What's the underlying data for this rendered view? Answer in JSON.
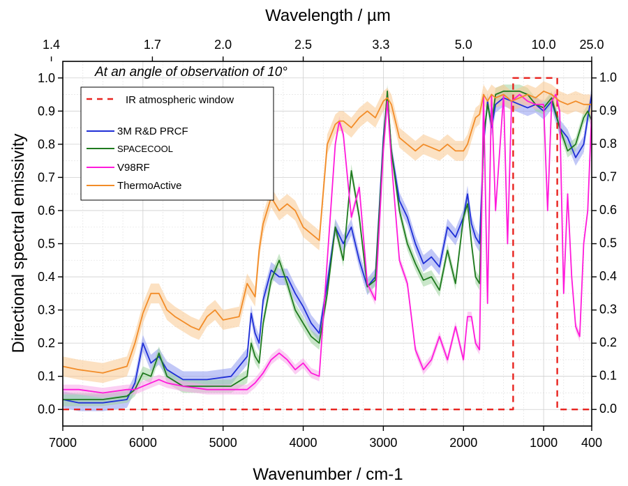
{
  "chart_data": {
    "type": "line",
    "xlabel": "Wavenumber / cm-1",
    "ylabel": "Directional spectral emissivity",
    "x2label": "Wavelength / µm",
    "annotation": "At an angle of observation of 10°",
    "xlim": [
      7000,
      400
    ],
    "ylim": [
      -0.05,
      1.05
    ],
    "grid": true,
    "legend_position": "top-left",
    "x_ticks": [
      7000,
      6000,
      5000,
      4000,
      3000,
      2000,
      1000,
      400
    ],
    "x_tick_labels": [
      "7000",
      "6000",
      "5000",
      "4000",
      "3000",
      "2000",
      "1000",
      "400"
    ],
    "x_top_ticks": [
      7143,
      5882,
      5000,
      4000,
      3030,
      2000,
      1000,
      400
    ],
    "x_top_tick_labels": [
      "1.4",
      "1.7",
      "2.0",
      "2.5",
      "3.3",
      "5.0",
      "10.0",
      "25.0"
    ],
    "y_ticks": [
      0.0,
      0.1,
      0.2,
      0.3,
      0.4,
      0.5,
      0.6,
      0.7,
      0.8,
      0.9,
      1.0
    ],
    "y_tick_labels": [
      "0.0",
      "0.1",
      "0.2",
      "0.3",
      "0.4",
      "0.5",
      "0.6",
      "0.7",
      "0.8",
      "0.9",
      "1.0"
    ],
    "series": [
      {
        "name": "IR atmospheric window",
        "color": "#e8231f",
        "dash": true,
        "x": [
          7000,
          1380,
          1380,
          830,
          830,
          400
        ],
        "y": [
          0.0,
          0.0,
          1.0,
          1.0,
          0.0,
          0.0
        ]
      },
      {
        "name": "3M R&D PRCF",
        "color": "#1f2fd6",
        "band_color": "#8f9bf0",
        "x": [
          7000,
          6800,
          6500,
          6200,
          6100,
          6000,
          5900,
          5800,
          5700,
          5500,
          5200,
          4900,
          4700,
          4650,
          4600,
          4550,
          4500,
          4400,
          4300,
          4200,
          4100,
          4000,
          3900,
          3800,
          3700,
          3600,
          3500,
          3400,
          3300,
          3200,
          3100,
          3000,
          2950,
          2900,
          2800,
          2700,
          2600,
          2500,
          2400,
          2300,
          2200,
          2100,
          2000,
          1950,
          1900,
          1850,
          1800,
          1750,
          1700,
          1650,
          1600,
          1500,
          1400,
          1300,
          1200,
          1100,
          1000,
          900,
          800,
          700,
          600,
          500,
          450,
          400
        ],
        "y": [
          0.03,
          0.02,
          0.02,
          0.03,
          0.08,
          0.2,
          0.14,
          0.16,
          0.12,
          0.09,
          0.09,
          0.1,
          0.16,
          0.29,
          0.23,
          0.2,
          0.33,
          0.42,
          0.4,
          0.4,
          0.35,
          0.31,
          0.26,
          0.23,
          0.38,
          0.55,
          0.5,
          0.55,
          0.45,
          0.37,
          0.4,
          0.82,
          0.95,
          0.78,
          0.63,
          0.58,
          0.5,
          0.44,
          0.46,
          0.43,
          0.55,
          0.52,
          0.58,
          0.65,
          0.56,
          0.52,
          0.5,
          0.8,
          0.93,
          0.85,
          0.92,
          0.94,
          0.93,
          0.92,
          0.91,
          0.92,
          0.9,
          0.93,
          0.85,
          0.82,
          0.76,
          0.8,
          0.88,
          0.95
        ],
        "band": 0.025
      },
      {
        "name": "SPACECOOL",
        "color": "#1f7a1f",
        "band_color": "#9fd39f",
        "x": [
          7000,
          6800,
          6500,
          6200,
          6100,
          6000,
          5900,
          5800,
          5700,
          5500,
          5200,
          4900,
          4700,
          4650,
          4600,
          4550,
          4500,
          4400,
          4300,
          4200,
          4100,
          4000,
          3900,
          3800,
          3700,
          3600,
          3500,
          3400,
          3300,
          3200,
          3100,
          3000,
          2950,
          2900,
          2800,
          2700,
          2600,
          2500,
          2400,
          2300,
          2200,
          2100,
          2000,
          1950,
          1900,
          1850,
          1800,
          1750,
          1700,
          1650,
          1600,
          1500,
          1400,
          1300,
          1200,
          1100,
          1000,
          900,
          800,
          700,
          600,
          500,
          450,
          400
        ],
        "y": [
          0.03,
          0.03,
          0.03,
          0.04,
          0.06,
          0.11,
          0.1,
          0.17,
          0.1,
          0.07,
          0.07,
          0.07,
          0.1,
          0.2,
          0.16,
          0.14,
          0.26,
          0.39,
          0.45,
          0.38,
          0.3,
          0.26,
          0.22,
          0.2,
          0.35,
          0.55,
          0.45,
          0.72,
          0.58,
          0.37,
          0.39,
          0.8,
          0.96,
          0.78,
          0.6,
          0.5,
          0.44,
          0.39,
          0.4,
          0.36,
          0.48,
          0.38,
          0.58,
          0.62,
          0.5,
          0.4,
          0.38,
          0.82,
          0.92,
          0.86,
          0.95,
          0.96,
          0.96,
          0.96,
          0.95,
          0.92,
          0.91,
          0.94,
          0.85,
          0.78,
          0.8,
          0.88,
          0.9,
          0.87
        ],
        "band": 0.02
      },
      {
        "name": "V98RF",
        "color": "#ff1adb",
        "band_color": "#f7a8ea",
        "x": [
          7000,
          6800,
          6500,
          6200,
          6100,
          6000,
          5900,
          5800,
          5700,
          5500,
          5200,
          4900,
          4700,
          4600,
          4500,
          4400,
          4300,
          4200,
          4100,
          4000,
          3900,
          3800,
          3700,
          3600,
          3550,
          3500,
          3400,
          3300,
          3200,
          3100,
          3000,
          2950,
          2900,
          2800,
          2700,
          2600,
          2500,
          2400,
          2300,
          2200,
          2100,
          2000,
          1950,
          1900,
          1850,
          1800,
          1750,
          1700,
          1650,
          1600,
          1500,
          1450,
          1400,
          1300,
          1200,
          1100,
          1000,
          950,
          900,
          850,
          800,
          750,
          700,
          650,
          600,
          550,
          500,
          450,
          400
        ],
        "y": [
          0.06,
          0.06,
          0.05,
          0.06,
          0.06,
          0.07,
          0.08,
          0.09,
          0.08,
          0.07,
          0.06,
          0.06,
          0.06,
          0.08,
          0.11,
          0.15,
          0.17,
          0.15,
          0.12,
          0.14,
          0.11,
          0.1,
          0.45,
          0.8,
          0.87,
          0.83,
          0.58,
          0.67,
          0.38,
          0.33,
          0.78,
          0.93,
          0.75,
          0.45,
          0.38,
          0.18,
          0.12,
          0.15,
          0.22,
          0.15,
          0.25,
          0.15,
          0.28,
          0.28,
          0.2,
          0.18,
          0.95,
          0.32,
          0.95,
          0.6,
          0.95,
          0.5,
          0.93,
          0.95,
          0.93,
          0.92,
          0.92,
          0.6,
          0.93,
          0.95,
          0.9,
          0.35,
          0.65,
          0.4,
          0.25,
          0.22,
          0.5,
          0.6,
          0.9
        ],
        "band": 0.015
      },
      {
        "name": "ThermoActive",
        "color": "#f28c28",
        "band_color": "#f9c98f",
        "x": [
          7000,
          6800,
          6500,
          6200,
          6100,
          6000,
          5900,
          5800,
          5700,
          5600,
          5400,
          5300,
          5200,
          5100,
          5000,
          4800,
          4700,
          4600,
          4550,
          4500,
          4400,
          4300,
          4200,
          4100,
          4000,
          3900,
          3800,
          3700,
          3600,
          3550,
          3500,
          3400,
          3300,
          3200,
          3100,
          3000,
          2950,
          2900,
          2800,
          2700,
          2600,
          2500,
          2400,
          2300,
          2200,
          2100,
          2000,
          1950,
          1900,
          1850,
          1800,
          1750,
          1700,
          1650,
          1600,
          1500,
          1400,
          1300,
          1200,
          1100,
          1000,
          900,
          800,
          700,
          600,
          500,
          450,
          400
        ],
        "y": [
          0.13,
          0.12,
          0.11,
          0.13,
          0.2,
          0.29,
          0.35,
          0.35,
          0.3,
          0.28,
          0.25,
          0.24,
          0.28,
          0.3,
          0.27,
          0.28,
          0.38,
          0.34,
          0.48,
          0.56,
          0.64,
          0.6,
          0.62,
          0.6,
          0.55,
          0.53,
          0.51,
          0.8,
          0.86,
          0.87,
          0.87,
          0.85,
          0.88,
          0.9,
          0.88,
          0.93,
          0.94,
          0.92,
          0.82,
          0.8,
          0.78,
          0.8,
          0.79,
          0.78,
          0.8,
          0.78,
          0.78,
          0.8,
          0.84,
          0.88,
          0.89,
          0.95,
          0.93,
          0.95,
          0.94,
          0.95,
          0.93,
          0.94,
          0.95,
          0.94,
          0.96,
          0.95,
          0.93,
          0.92,
          0.93,
          0.92,
          0.92,
          0.92
        ],
        "band": 0.03
      }
    ]
  }
}
